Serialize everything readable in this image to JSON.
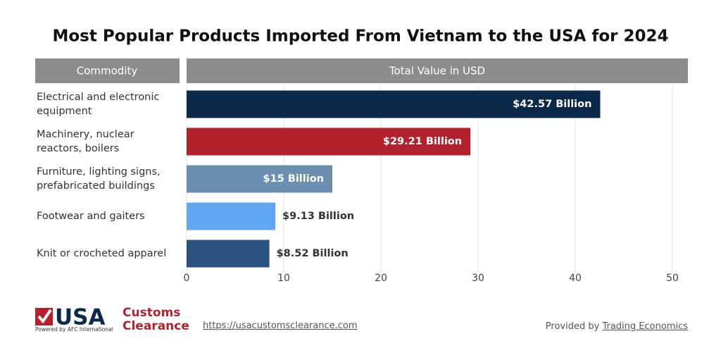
{
  "chart_data": {
    "type": "bar",
    "orientation": "horizontal",
    "title": "Most Popular Products Imported From Vietnam to the USA for 2024",
    "category_header": "Commodity",
    "value_header": "Total Value in USD",
    "categories": [
      "Electrical and electronic\nequipment",
      "Machinery, nuclear\nreactors, boilers",
      "Furniture, lighting signs,\nprefabricated buildings",
      "Footwear and gaiters",
      "Knit or crocheted apparel"
    ],
    "values": [
      42.57,
      29.21,
      15,
      9.13,
      8.52
    ],
    "value_labels": [
      "$42.57 Billion",
      "$29.21 Billion",
      "$15 Billion",
      "$9.13 Billion",
      "$8.52 Billion"
    ],
    "colors": [
      "#0b2a4a",
      "#b3222c",
      "#6b8fb0",
      "#5fa7f0",
      "#2c5282"
    ],
    "xlim": [
      0,
      50
    ],
    "xticks": [
      0,
      10,
      20,
      30,
      40,
      50
    ],
    "grid": true
  },
  "footer": {
    "logo_main": "USA",
    "logo_top": "Customs",
    "logo_bottom": "Clearance",
    "logo_tagline": "Powered by AFC International",
    "url": "https://usacustomsclearance.com",
    "source_prefix": "Provided by",
    "source": "Trading Economics"
  }
}
